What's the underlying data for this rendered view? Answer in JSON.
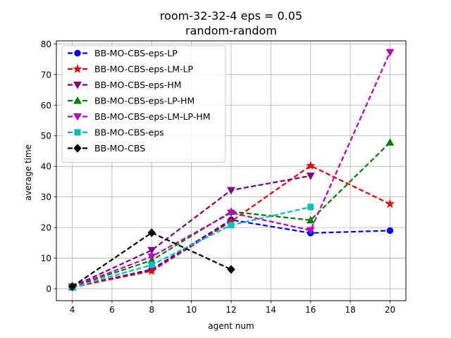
{
  "chart_data": {
    "type": "line",
    "title": "room-32-32-4    eps = 0.05",
    "subtitle": "random-random",
    "xlabel": "agent num",
    "ylabel": "average time",
    "xlim": [
      3.2,
      20.8
    ],
    "ylim": [
      -3.9,
      81
    ],
    "xticks": [
      "4",
      "6",
      "8",
      "10",
      "12",
      "14",
      "16",
      "18",
      "20"
    ],
    "yticks": [
      "0",
      "10",
      "20",
      "30",
      "40",
      "50",
      "60",
      "70",
      "80"
    ],
    "grid": true,
    "legend_position": "top-left",
    "series": [
      {
        "name": "BB-MO-CBS-eps-LP",
        "color": "#0000ff",
        "marker": "circle",
        "x": [
          4,
          8,
          12,
          16,
          20
        ],
        "y": [
          0.5,
          6.3,
          22.5,
          18.2,
          19.0
        ]
      },
      {
        "name": "BB-MO-CBS-eps-LM-LP",
        "color": "#ee0000",
        "marker": "star",
        "x": [
          4,
          8,
          12,
          16,
          20
        ],
        "y": [
          0.5,
          5.8,
          22.0,
          40.2,
          27.7
        ]
      },
      {
        "name": "BB-MO-CBS-eps-HM",
        "color": "#800080",
        "marker": "triangle-down",
        "x": [
          4,
          8,
          12,
          16
        ],
        "y": [
          0.7,
          12.6,
          32.2,
          36.9
        ]
      },
      {
        "name": "BB-MO-CBS-eps-LP-HM",
        "color": "#008000",
        "marker": "triangle-up",
        "x": [
          4,
          8,
          12,
          16,
          20
        ],
        "y": [
          0.6,
          9.3,
          25.2,
          22.4,
          47.8
        ]
      },
      {
        "name": "BB-MO-CBS-eps-LM-LP-HM",
        "color": "#bf00bf",
        "marker": "triangle-down",
        "x": [
          4,
          8,
          12,
          16,
          20
        ],
        "y": [
          0.6,
          10.5,
          24.8,
          19.1,
          77.3
        ]
      },
      {
        "name": "BB-MO-CBS-eps",
        "color": "#00bfbf",
        "marker": "square",
        "x": [
          4,
          8,
          12,
          16
        ],
        "y": [
          0.4,
          7.8,
          20.8,
          26.7
        ]
      },
      {
        "name": "BB-MO-CBS",
        "color": "#000000",
        "marker": "diamond",
        "x": [
          4,
          8,
          12
        ],
        "y": [
          0.7,
          18.3,
          6.3
        ]
      }
    ]
  }
}
